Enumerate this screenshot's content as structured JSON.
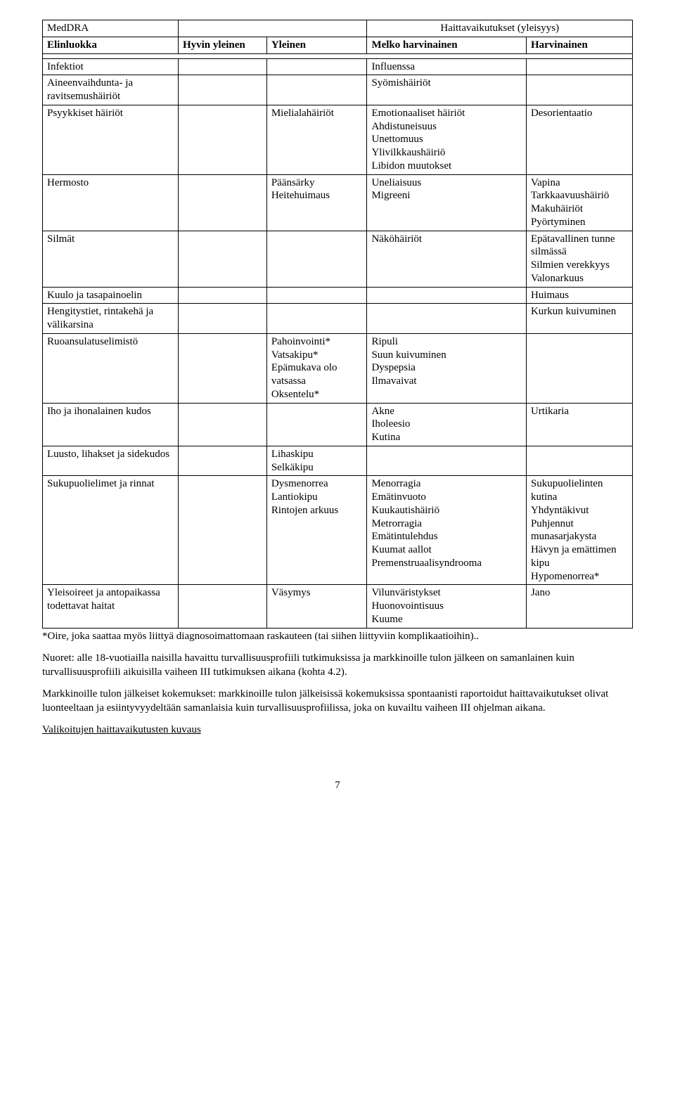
{
  "header": {
    "meddra": "MedDRA",
    "frequency_title": "Haittavaikutukset (yleisyys)",
    "elinluokka": "Elinluokka",
    "hyvin_yleinen": "Hyvin yleinen",
    "yleinen": "Yleinen",
    "melko_harvinainen": "Melko harvinainen",
    "harvinainen": "Harvinainen"
  },
  "rows": {
    "infektiot": {
      "label": "Infektiot",
      "mh": "Influenssa"
    },
    "aineenvaihdunta": {
      "label": "Aineenvaihdunta- ja ravitsemushäiriöt",
      "mh": "Syömishäiriöt"
    },
    "psyykkiset": {
      "label": "Psyykkiset häiriöt",
      "yleinen": "Mielialahäiriöt",
      "mh": "Emotionaaliset häiriöt\nAhdistuneisuus\nUnettomuus\nYlivilkkaushäiriö\nLibidon muutokset",
      "harv": "Desorientaatio"
    },
    "hermosto": {
      "label": "Hermosto",
      "yleinen": "Päänsärky\nHeitehuimaus",
      "mh": "Uneliaisuus\nMigreeni",
      "harv": "Vapina\nTarkkaavuushäiriö\nMakuhäiriöt\nPyörtyminen"
    },
    "silmat": {
      "label": "Silmät",
      "mh": "Näköhäiriöt",
      "harv": "Epätavallinen tunne silmässä\nSilmien verekkyys\nValonarkuus"
    },
    "kuulo": {
      "label": "Kuulo ja tasapainoelin",
      "harv": "Huimaus"
    },
    "hengitystiet": {
      "label": "Hengitystiet, rintakehä ja välikarsina",
      "harv": "Kurkun kuivuminen"
    },
    "ruoansulatus": {
      "label": "Ruoansulatuselimistö",
      "yleinen": "Pahoinvointi*\nVatsakipu*\nEpämukava olo vatsassa\nOksentelu*",
      "mh": "Ripuli\nSuun kuivuminen\nDyspepsia\nIlmavaivat"
    },
    "iho": {
      "label": "Iho ja ihonalainen kudos",
      "mh": "Akne\nIholeesio\nKutina",
      "harv": "Urtikaria"
    },
    "luusto": {
      "label": "Luusto, lihakset ja sidekudos",
      "yleinen": "Lihaskipu\nSelkäkipu"
    },
    "sukupuoli": {
      "label": "Sukupuolielimet ja rinnat",
      "yleinen": "Dysmenorrea\nLantiokipu\nRintojen arkuus",
      "mh": "Menorragia\nEmätinvuoto\nKuukautishäiriö\nMetrorragia\nEmätintulehdus\nKuumat aallot\nPremenstruaalisyndrooma",
      "harv": "Sukupuolielinten kutina\nYhdyntäkivut\nPuhjennut munasarjakysta\nHävyn ja emättimen kipu\nHypomenorrea*"
    },
    "yleisoireet": {
      "label": "Yleisoireet ja antopaikassa todettavat haitat",
      "yleinen": "Väsymys",
      "mh": "Vilunväristykset\nHuonovointisuus\nKuume",
      "harv": "Jano"
    }
  },
  "footnote": "*Oire, joka saattaa myös liittyä diagnosoimattomaan raskauteen (tai siihen liittyviin komplikaatioihin)..",
  "para1": "Nuoret: alle 18-vuotiailla naisilla havaittu turvallisuusprofiili tutkimuksissa ja markkinoille tulon jälkeen on samanlainen kuin turvallisuusprofiili aikuisilla vaiheen III tutkimuksen aikana (kohta 4.2).",
  "para2": "Markkinoille tulon jälkeiset kokemukset: markkinoille tulon jälkeisissä kokemuksissa spontaanisti raportoidut haittavaikutukset olivat luonteeltaan ja esiintyvyydeltään samanlaisia kuin turvallisuusprofiilissa, joka on kuvailtu vaiheen III ohjelman aikana.",
  "subheading": "Valikoitujen haittavaikutusten kuvaus",
  "page_number": "7"
}
